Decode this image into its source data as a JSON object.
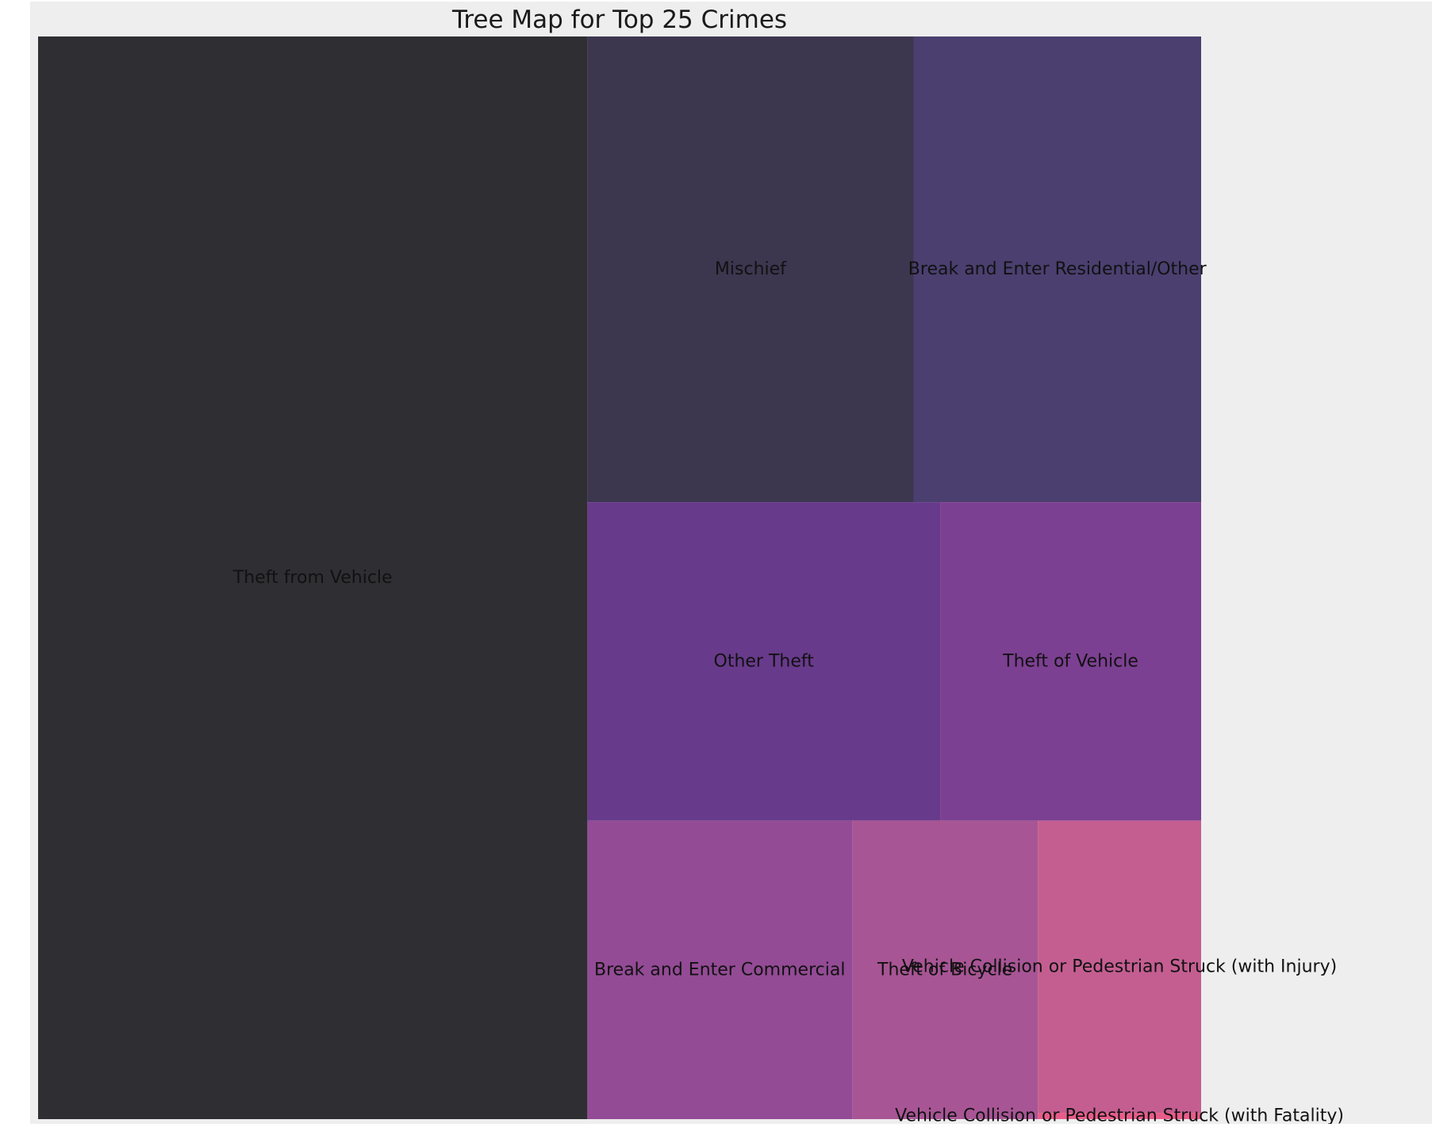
{
  "chart_data": {
    "type": "treemap",
    "title": "Tree Map for Top 25 Crimes",
    "categories": [
      "Theft from Vehicle",
      "Mischief",
      "Break and Enter Residential/Other",
      "Other Theft",
      "Theft of Vehicle",
      "Break and Enter Commercial",
      "Theft of Bicycle",
      "Vehicle Collision or Pedestrian Struck (with Injury)",
      "Vehicle Collision or Pedestrian Struck (with Fatality)"
    ],
    "values": [
      1159,
      296,
      261,
      219,
      162,
      154,
      108,
      93,
      2
    ],
    "colors": [
      "#2f2e33",
      "#3d364f",
      "#4b3f70",
      "#683a8b",
      "#7c4092",
      "#934b95",
      "#a85595",
      "#c45e91",
      "#e85c8a"
    ],
    "grid": false,
    "legend": "none"
  }
}
